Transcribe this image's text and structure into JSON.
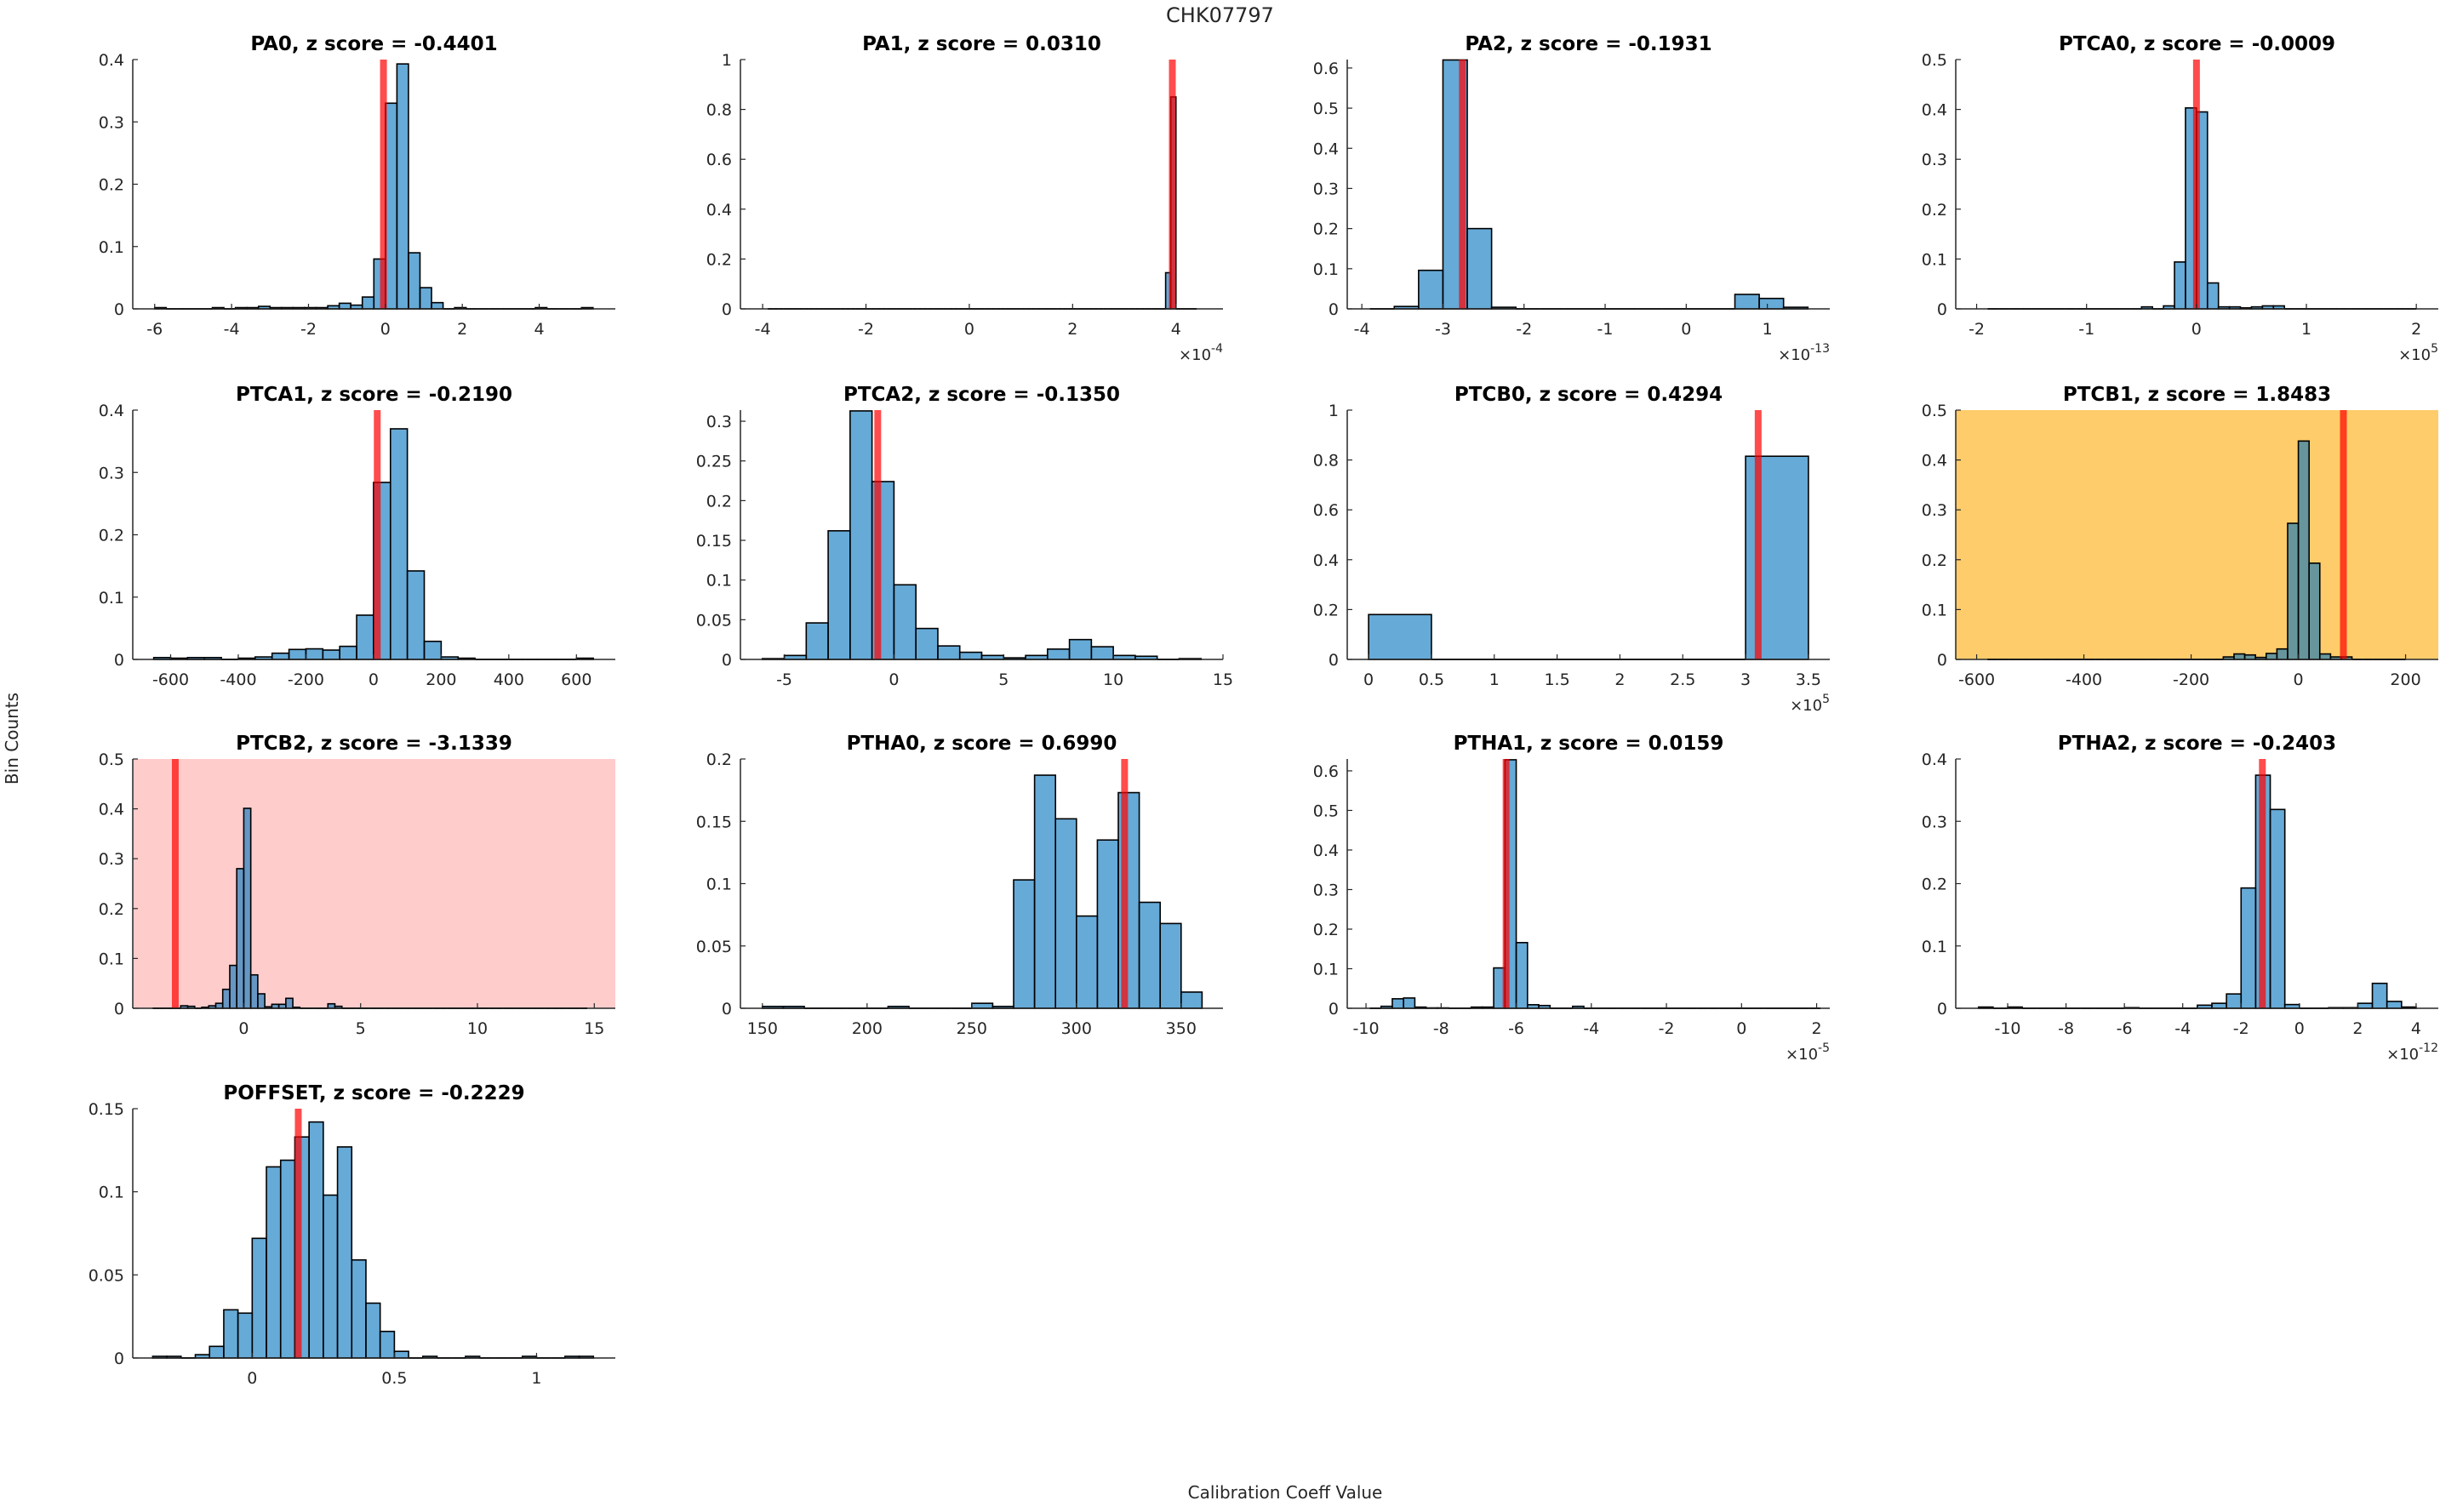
{
  "figure": {
    "title": "CHK07797",
    "ylabel": "Bin Counts",
    "xlabel": "Calibration Coeff Value",
    "exponent_base": "×10"
  },
  "colors": {
    "bar": "#0072BD",
    "reference_line": "#FF0000",
    "warning_background": "#FECC6A",
    "alert_background": "#FFCCCC",
    "axis": "#262626"
  },
  "chart_data": [
    {
      "type": "bar",
      "title": "PA0, z score = -0.4401",
      "xlim": [
        -6.57,
        5.98
      ],
      "ylim": [
        0,
        0.4
      ],
      "xticks": [
        -6,
        -4,
        -2,
        0,
        2,
        4
      ],
      "yticks": [
        0,
        0.1,
        0.2,
        0.3,
        0.4
      ],
      "exponent": null,
      "bin_start": -6,
      "bin_width": 0.3,
      "values": [
        0.002,
        0,
        0,
        0,
        0,
        0.002,
        0,
        0.002,
        0.002,
        0.004,
        0.002,
        0.002,
        0.002,
        0.002,
        0.002,
        0.005,
        0.009,
        0.006,
        0.019,
        0.08,
        0.33,
        0.393,
        0.09,
        0.034,
        0.01,
        0,
        0.002,
        0,
        0,
        0,
        0,
        0,
        0,
        0.002,
        0,
        0,
        0,
        0.002
      ],
      "ref_value": -0.05,
      "background": null
    },
    {
      "type": "bar",
      "title": "PA1, z score = 0.0310",
      "xlim": [
        -4.43,
        4.91
      ],
      "ylim": [
        0,
        1
      ],
      "xticks": [
        -4,
        -2,
        0,
        2,
        4
      ],
      "yticks": [
        0,
        0.2,
        0.4,
        0.6,
        0.8,
        1
      ],
      "exponent": "-4",
      "bin_start": -3.9,
      "bin_width": 0.1,
      "bin_count": 83,
      "values_sparse": {
        "77": 0.145,
        "78": 0.85
      },
      "ref_value": 3.93,
      "background": null
    },
    {
      "type": "bar",
      "title": "PA2, z score = -0.1931",
      "xlim": [
        -4.18,
        1.77
      ],
      "ylim": [
        0,
        0.621
      ],
      "xticks": [
        -4,
        -3,
        -2,
        -1,
        0,
        1
      ],
      "yticks": [
        0,
        0.1,
        0.2,
        0.3,
        0.4,
        0.5,
        0.6
      ],
      "exponent": "-13",
      "bin_start": -3.9,
      "bin_width": 0.3,
      "values": [
        0,
        0.006,
        0.096,
        0.62,
        0.2,
        0.004,
        0,
        0,
        0,
        0,
        0,
        0,
        0,
        0,
        0,
        0.036,
        0.026,
        0.004
      ],
      "ref_value": -2.76,
      "background": null
    },
    {
      "type": "bar",
      "title": "PTCA0, z score = -0.0009",
      "xlim": [
        -2.19,
        2.2
      ],
      "ylim": [
        0,
        0.5
      ],
      "xticks": [
        -2,
        -1,
        0,
        1,
        2
      ],
      "yticks": [
        0,
        0.1,
        0.2,
        0.3,
        0.4,
        0.5
      ],
      "exponent": "5",
      "bin_start": -1.9,
      "bin_width": 0.1,
      "bin_count": 39,
      "values_sparse": {
        "14": 0.004,
        "16": 0.006,
        "17": 0.094,
        "18": 0.403,
        "19": 0.395,
        "20": 0.052,
        "21": 0.004,
        "22": 0.004,
        "23": 0.002,
        "24": 0.004,
        "25": 0.006,
        "26": 0.006
      },
      "ref_value": 0.0,
      "background": null
    },
    {
      "type": "bar",
      "title": "PTCA1, z score = -0.2190",
      "xlim": [
        -712,
        715
      ],
      "ylim": [
        0,
        0.4
      ],
      "xticks": [
        -600,
        -400,
        -200,
        0,
        200,
        400,
        600
      ],
      "yticks": [
        0,
        0.1,
        0.2,
        0.3,
        0.4
      ],
      "exponent": null,
      "bin_start": -650,
      "bin_width": 50,
      "values": [
        0.003,
        0.002,
        0.003,
        0.003,
        0,
        0.002,
        0.004,
        0.01,
        0.016,
        0.017,
        0.015,
        0.021,
        0.071,
        0.284,
        0.37,
        0.142,
        0.029,
        0.004,
        0.002,
        0,
        0,
        0,
        0,
        0,
        0,
        0.002
      ],
      "ref_value": 11,
      "background": null
    },
    {
      "type": "bar",
      "title": "PTCA2, z score = -0.1350",
      "xlim": [
        -7,
        15
      ],
      "ylim": [
        0,
        0.314
      ],
      "xticks": [
        -5,
        0,
        5,
        10,
        15
      ],
      "yticks": [
        0,
        0.05,
        0.1,
        0.15,
        0.2,
        0.25,
        0.3
      ],
      "exponent": null,
      "bin_start": -6,
      "bin_width": 1,
      "values": [
        0.001,
        0.005,
        0.046,
        0.162,
        0.313,
        0.224,
        0.094,
        0.039,
        0.017,
        0.009,
        0.005,
        0.002,
        0.005,
        0.013,
        0.025,
        0.016,
        0.005,
        0.004,
        0,
        0.001
      ],
      "ref_value": -0.74,
      "background": null
    },
    {
      "type": "bar",
      "title": "PTCB0, z score = 0.4294",
      "xlim": [
        -0.17,
        3.67
      ],
      "ylim": [
        0,
        1
      ],
      "xticks": [
        0,
        0.5,
        1,
        1.5,
        2,
        2.5,
        3,
        3.5
      ],
      "yticks": [
        0,
        0.2,
        0.4,
        0.6,
        0.8,
        1
      ],
      "exponent": "5",
      "bin_start": 0,
      "bin_width": 0.5,
      "values": [
        0.18,
        0,
        0,
        0,
        0,
        0,
        0.815
      ],
      "ref_value": 3.1,
      "background": null
    },
    {
      "type": "bar",
      "title": "PTCB1, z score = 1.8483",
      "xlim": [
        -639,
        261
      ],
      "ylim": [
        0,
        0.5
      ],
      "xticks": [
        -600,
        -400,
        -200,
        0,
        200
      ],
      "yticks": [
        0,
        0.1,
        0.2,
        0.3,
        0.4,
        0.5
      ],
      "exponent": null,
      "bin_start": -580,
      "bin_width": 20,
      "bin_count": 39,
      "values_sparse": {
        "22": 0.005,
        "23": 0.011,
        "24": 0.009,
        "25": 0.004,
        "26": 0.012,
        "27": 0.021,
        "28": 0.273,
        "29": 0.438,
        "30": 0.193,
        "31": 0.011,
        "32": 0.005,
        "33": 0.005
      },
      "ref_value": 84,
      "background": "warning"
    },
    {
      "type": "bar",
      "title": "PTCB2, z score = -3.1339",
      "xlim": [
        -4.75,
        15.9
      ],
      "ylim": [
        0,
        0.5
      ],
      "xticks": [
        0,
        5,
        10,
        15
      ],
      "yticks": [
        0,
        0.1,
        0.2,
        0.3,
        0.4,
        0.5
      ],
      "exponent": null,
      "bin_start": -3.9,
      "bin_width": 0.3,
      "bin_count": 62,
      "values_sparse": {
        "4": 0.005,
        "5": 0.004,
        "7": 0.002,
        "8": 0.005,
        "9": 0.01,
        "10": 0.038,
        "11": 0.086,
        "12": 0.28,
        "13": 0.401,
        "14": 0.067,
        "15": 0.029,
        "16": 0.003,
        "17": 0.008,
        "18": 0.008,
        "19": 0.02,
        "20": 0.002,
        "25": 0.009,
        "26": 0.004
      },
      "ref_value": -2.93,
      "background": "alert"
    },
    {
      "type": "bar",
      "title": "PTHA0, z score = 0.6990",
      "xlim": [
        139.5,
        370
      ],
      "ylim": [
        0,
        0.2
      ],
      "xticks": [
        150,
        200,
        250,
        300,
        350
      ],
      "yticks": [
        0,
        0.05,
        0.1,
        0.15,
        0.2
      ],
      "exponent": null,
      "bin_start": 150,
      "bin_width": 10,
      "values": [
        0.0015,
        0.0015,
        0,
        0,
        0,
        0,
        0.0015,
        0,
        0,
        0,
        0.004,
        0.0015,
        0.103,
        0.187,
        0.152,
        0.074,
        0.135,
        0.173,
        0.085,
        0.068,
        0.013
      ],
      "ref_value": 323,
      "background": null
    },
    {
      "type": "bar",
      "title": "PTHA1, z score = 0.0159",
      "xlim": [
        -10.5,
        2.35
      ],
      "ylim": [
        0,
        0.63
      ],
      "xticks": [
        -10,
        -8,
        -6,
        -4,
        -2,
        0,
        2
      ],
      "yticks": [
        0,
        0.1,
        0.2,
        0.3,
        0.4,
        0.5,
        0.6
      ],
      "exponent": "-5",
      "bin_start": -9.9,
      "bin_width": 0.3,
      "bin_count": 40,
      "values_sparse": {
        "1": 0.005,
        "2": 0.024,
        "3": 0.026,
        "4": 0.003,
        "5": 0.001,
        "6": 0.001,
        "9": 0.003,
        "10": 0.003,
        "11": 0.102,
        "12": 0.628,
        "13": 0.166,
        "14": 0.009,
        "15": 0.007,
        "18": 0.005
      },
      "ref_value": -6.27,
      "background": null
    },
    {
      "type": "bar",
      "title": "PTHA2, z score = -0.2403",
      "xlim": [
        -11.78,
        4.76
      ],
      "ylim": [
        0,
        0.4
      ],
      "xticks": [
        -10,
        -8,
        -6,
        -4,
        -2,
        0,
        2,
        4
      ],
      "yticks": [
        0,
        0.1,
        0.2,
        0.3,
        0.4
      ],
      "exponent": "-12",
      "bin_start": -11,
      "bin_width": 0.5,
      "bin_count": 30,
      "values_sparse": {
        "0": 0.002,
        "2": 0.002,
        "10": 0.001,
        "15": 0.005,
        "16": 0.008,
        "17": 0.023,
        "18": 0.193,
        "19": 0.374,
        "20": 0.319,
        "21": 0.006,
        "24": 0.001,
        "25": 0.001,
        "26": 0.008,
        "27": 0.04,
        "28": 0.011,
        "29": 0.002
      },
      "ref_value": -1.27,
      "background": null
    },
    {
      "type": "bar",
      "title": "POFFSET, z score = -0.2229",
      "xlim": [
        -0.42,
        1.277
      ],
      "ylim": [
        0,
        0.15
      ],
      "xticks": [
        0,
        0.5,
        1
      ],
      "yticks": [
        0,
        0.05,
        0.1,
        0.15
      ],
      "exponent": null,
      "bin_start": -0.35,
      "bin_width": 0.05,
      "values": [
        0.001,
        0.001,
        0,
        0.002,
        0.007,
        0.029,
        0.027,
        0.072,
        0.115,
        0.119,
        0.133,
        0.142,
        0.098,
        0.127,
        0.059,
        0.033,
        0.016,
        0.004,
        0,
        0.001,
        0,
        0,
        0.001,
        0,
        0,
        0,
        0.001,
        0,
        0,
        0.001,
        0.001
      ],
      "ref_value": 0.162,
      "background": null
    }
  ]
}
